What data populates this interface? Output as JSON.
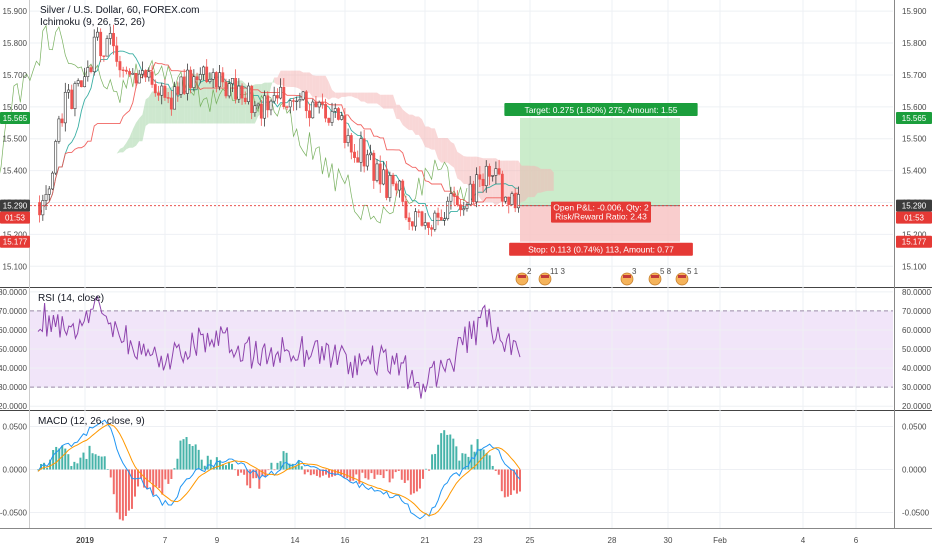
{
  "header": {
    "symbol_title": "Silver / U.S. Dollar, 60, FOREX.com",
    "indicator_ichimoku": "Ichimoku (9, 26, 52, 26)",
    "indicator_rsi": "RSI (14, close)",
    "indicator_macd": "MACD (12, 26, close, 9)"
  },
  "colors": {
    "bull": "#26a69a",
    "bear": "#ef5350",
    "candle_dark": "#3c3c3c",
    "cloud_green": "#a5d6a7",
    "cloud_red": "#f4b6b6",
    "target_zone": "#b9e6b9",
    "stop_zone": "#f8c4c4",
    "rsi_line": "#8e44ad",
    "rsi_band": "#ecdcf7",
    "macd_line": "#2196f3",
    "signal_line": "#ff9800",
    "price_red": "#e53935",
    "price_green": "#1b9e3c"
  },
  "price_axis": {
    "ticks": [
      "15.900",
      "15.800",
      "15.700",
      "15.600",
      "15.500",
      "15.400",
      "15.300",
      "15.200",
      "15.100"
    ],
    "tick_values": [
      15.9,
      15.8,
      15.7,
      15.6,
      15.5,
      15.4,
      15.3,
      15.2,
      15.1
    ],
    "ylim": [
      15.035,
      15.935
    ]
  },
  "price_tags": {
    "target": "15.565",
    "current": "15.290",
    "countdown": "01:53",
    "stop": "15.177"
  },
  "position": {
    "target_label": "Target: 0.275 (1.80%) 275, Amount: 1.55",
    "pnl_label": "Open P&L: -0.006, Qty: 2",
    "rr_label": "Risk/Reward Ratio: 2.43",
    "stop_label": "Stop: 0.113 (0.74%) 113, Amount: 0.77",
    "entry": 15.29,
    "target": 15.565,
    "stop": 15.177
  },
  "events": [
    {
      "label": "2",
      "kind": "flag"
    },
    {
      "label": "11 3",
      "kind": "flag"
    },
    {
      "label": "3",
      "kind": "flag"
    },
    {
      "label": "5 8",
      "kind": "flag"
    },
    {
      "label": "5 1",
      "kind": "flag"
    }
  ],
  "rsi_axis": {
    "ticks": [
      "80.0000",
      "70.0000",
      "60.0000",
      "50.0000",
      "40.0000",
      "30.0000",
      "20.0000"
    ],
    "tick_values": [
      80,
      70,
      60,
      50,
      40,
      30,
      20
    ],
    "ylim": [
      18,
      82
    ]
  },
  "macd_axis": {
    "ticks": [
      "0.0500",
      "0.0000",
      "-0.0500"
    ],
    "tick_values": [
      0.05,
      0.0,
      -0.05
    ],
    "ylim": [
      -0.068,
      0.068
    ]
  },
  "time_axis": {
    "labels": [
      "2019",
      "7",
      "9",
      "14",
      "16",
      "21",
      "23",
      "25",
      "28",
      "30",
      "Feb",
      "4",
      "6"
    ]
  },
  "chart_data": {
    "type": "line",
    "title": "Silver / U.S. Dollar, 60, FOREX.com",
    "series": [
      {
        "name": "Silver / U.S. Dollar",
        "x": [
          "2019-01-03",
          "2019-01-04",
          "2019-01-07",
          "2019-01-08",
          "2019-01-09",
          "2019-01-10",
          "2019-01-11",
          "2019-01-14",
          "2019-01-15",
          "2019-01-16",
          "2019-01-17",
          "2019-01-18",
          "2019-01-21",
          "2019-01-22",
          "2019-01-23",
          "2019-01-24"
        ],
        "values": [
          15.3,
          15.62,
          15.8,
          15.72,
          15.62,
          15.7,
          15.66,
          15.6,
          15.63,
          15.58,
          15.46,
          15.34,
          15.22,
          15.3,
          15.38,
          15.29
        ]
      },
      {
        "name": "RSI (14, close)",
        "x": [
          "2019-01-03",
          "2019-01-04",
          "2019-01-07",
          "2019-01-08",
          "2019-01-09",
          "2019-01-10",
          "2019-01-11",
          "2019-01-14",
          "2019-01-15",
          "2019-01-16",
          "2019-01-17",
          "2019-01-18",
          "2019-01-21",
          "2019-01-22",
          "2019-01-23",
          "2019-01-24"
        ],
        "values": [
          66,
          62,
          72,
          50,
          44,
          56,
          52,
          46,
          50,
          48,
          42,
          44,
          30,
          48,
          66,
          42
        ]
      },
      {
        "name": "MACD (12, 26, close, 9)",
        "x": [
          "2019-01-03",
          "2019-01-04",
          "2019-01-07",
          "2019-01-08",
          "2019-01-09",
          "2019-01-10",
          "2019-01-11",
          "2019-01-14",
          "2019-01-15",
          "2019-01-16",
          "2019-01-17",
          "2019-01-18",
          "2019-01-21",
          "2019-01-22",
          "2019-01-23",
          "2019-01-24"
        ],
        "values": [
          0.0,
          0.03,
          0.055,
          -0.01,
          -0.04,
          0.0,
          0.012,
          -0.008,
          0.008,
          -0.004,
          -0.018,
          -0.03,
          -0.055,
          -0.005,
          0.028,
          -0.008
        ]
      }
    ],
    "xlabel": "",
    "ylabel": "",
    "ylim": [
      15.035,
      15.935
    ],
    "grid": true,
    "legend": "top-left"
  }
}
